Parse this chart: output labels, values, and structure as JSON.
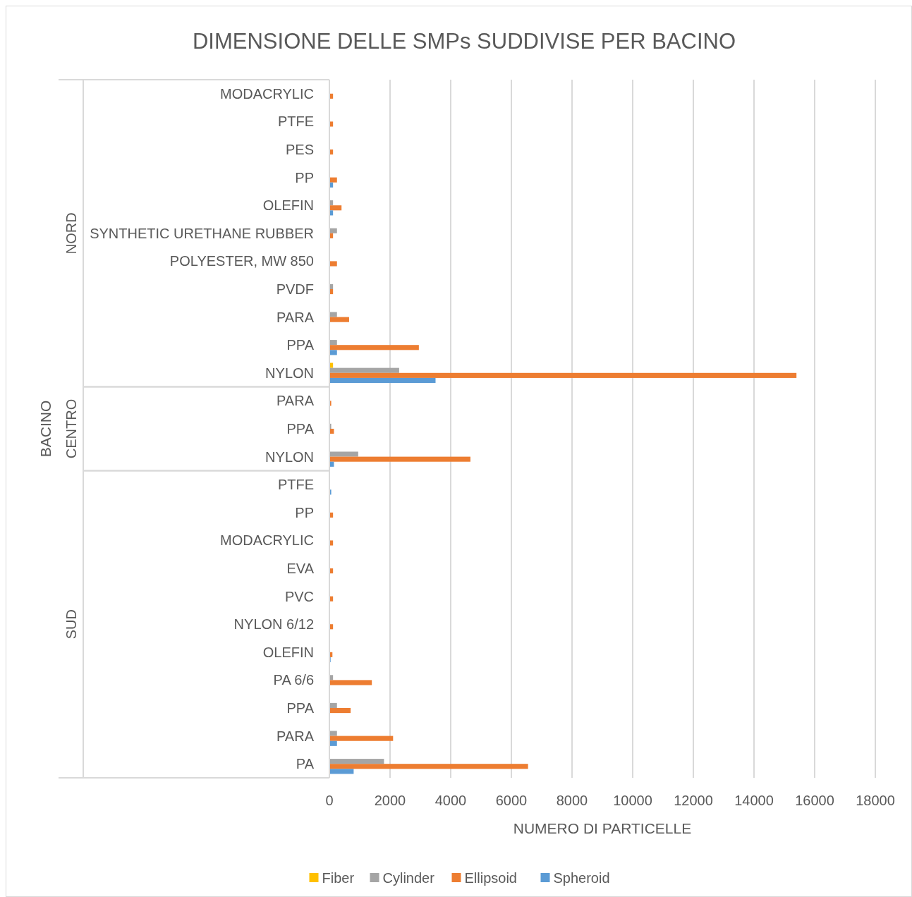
{
  "chart_data": {
    "type": "bar",
    "orientation": "horizontal",
    "title": "DIMENSIONE DELLE SMPs  SUDDIVISE PER BACINO",
    "xlabel": "NUMERO DI PARTICELLE",
    "ylabel": "BACINO",
    "annotations": [
      "NORD",
      "CENTRO",
      "SUD"
    ],
    "categories": [
      "MODACRYLIC",
      "PTFE",
      "PES",
      "PP",
      "OLEFIN",
      "SYNTHETIC URETHANE RUBBER",
      "POLYESTER, MW 850",
      "PVDF",
      "PARA",
      "PPA",
      "NYLON",
      "PARA",
      "PPA",
      "NYLON",
      "PTFE",
      "PP",
      "MODACRYLIC",
      "EVA",
      "PVC",
      "NYLON 6/12",
      "OLEFIN",
      "PA 6/6",
      "PPA",
      "PARA",
      "PA"
    ],
    "series": [
      {
        "name": "Fiber",
        "color": "#ffc000",
        "values": [
          null,
          null,
          null,
          null,
          null,
          null,
          null,
          null,
          null,
          null,
          120,
          null,
          null,
          null,
          null,
          null,
          null,
          null,
          null,
          null,
          null,
          null,
          null,
          null,
          null
        ]
      },
      {
        "name": "Cylinder",
        "color": "#a5a5a5",
        "values": [
          null,
          null,
          null,
          null,
          120,
          250,
          null,
          120,
          250,
          250,
          2300,
          null,
          60,
          950,
          null,
          null,
          null,
          null,
          null,
          null,
          null,
          120,
          250,
          250,
          1800
        ]
      },
      {
        "name": "Ellipsoid",
        "color": "#ed7d31",
        "values": [
          120,
          120,
          120,
          250,
          400,
          120,
          250,
          120,
          650,
          2950,
          15400,
          60,
          150,
          4650,
          null,
          120,
          120,
          120,
          120,
          120,
          100,
          1400,
          700,
          2100,
          6550
        ]
      },
      {
        "name": "Spheroid",
        "color": "#5b9bd5",
        "values": [
          null,
          null,
          null,
          120,
          120,
          null,
          null,
          null,
          null,
          250,
          3500,
          null,
          null,
          150,
          60,
          null,
          null,
          null,
          null,
          null,
          40,
          null,
          null,
          250,
          800
        ]
      }
    ],
    "xlim": [
      0,
      18000
    ],
    "xticks": [
      0,
      2000,
      4000,
      6000,
      8000,
      10000,
      12000,
      14000,
      16000,
      18000
    ],
    "grid": "x",
    "legend": "bottom"
  }
}
